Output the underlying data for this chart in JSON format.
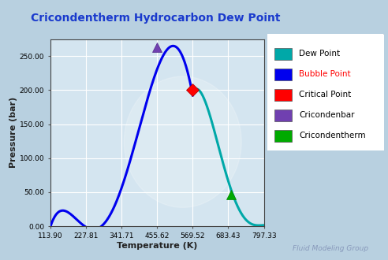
{
  "title": "Cricondentherm Hydrocarbon Dew Point",
  "title_color": "#1a3acd",
  "xlabel": "Temperature (K)",
  "ylabel": "Pressure (bar)",
  "xtick_labels": [
    "113.90",
    "227.81",
    "341.71",
    "455.62",
    "569.52",
    "683.43",
    "797.33"
  ],
  "xtick_vals": [
    113.9,
    227.81,
    341.71,
    455.62,
    569.52,
    683.43,
    797.33
  ],
  "ytick_labels": [
    "0.00",
    "50.00",
    "100.00",
    "150.00",
    "200.00",
    "250.00"
  ],
  "ytick_vals": [
    0.0,
    50.0,
    100.0,
    150.0,
    200.0,
    250.0
  ],
  "xlim": [
    113.9,
    797.33
  ],
  "ylim": [
    0.0,
    275.0
  ],
  "bg_outer": "#b8d0e0",
  "bg_plot": "#d4e5f0",
  "grid_color": "#ffffff",
  "bubble_color": "#0000ee",
  "dew_color": "#00a8a8",
  "critical_point": [
    569.52,
    200.0
  ],
  "cricondenbar_point": [
    455.62,
    263.0
  ],
  "cricondentherm_point": [
    692.0,
    46.0
  ],
  "legend_entries": [
    {
      "label": "Dew Point",
      "color": "#00a8a8",
      "text_color": "#000000"
    },
    {
      "label": "Bubble Point",
      "color": "#0000ee",
      "text_color": "#ff0000"
    },
    {
      "label": "Critical Point",
      "color": "#ff0000",
      "text_color": "#000000"
    },
    {
      "label": "Cricondenbar",
      "color": "#7040b0",
      "text_color": "#000000"
    },
    {
      "label": "Cricondentherm",
      "color": "#00aa00",
      "text_color": "#000000"
    }
  ],
  "watermark": "Fluid Modeling Group",
  "watermark_color": "#8899bb"
}
